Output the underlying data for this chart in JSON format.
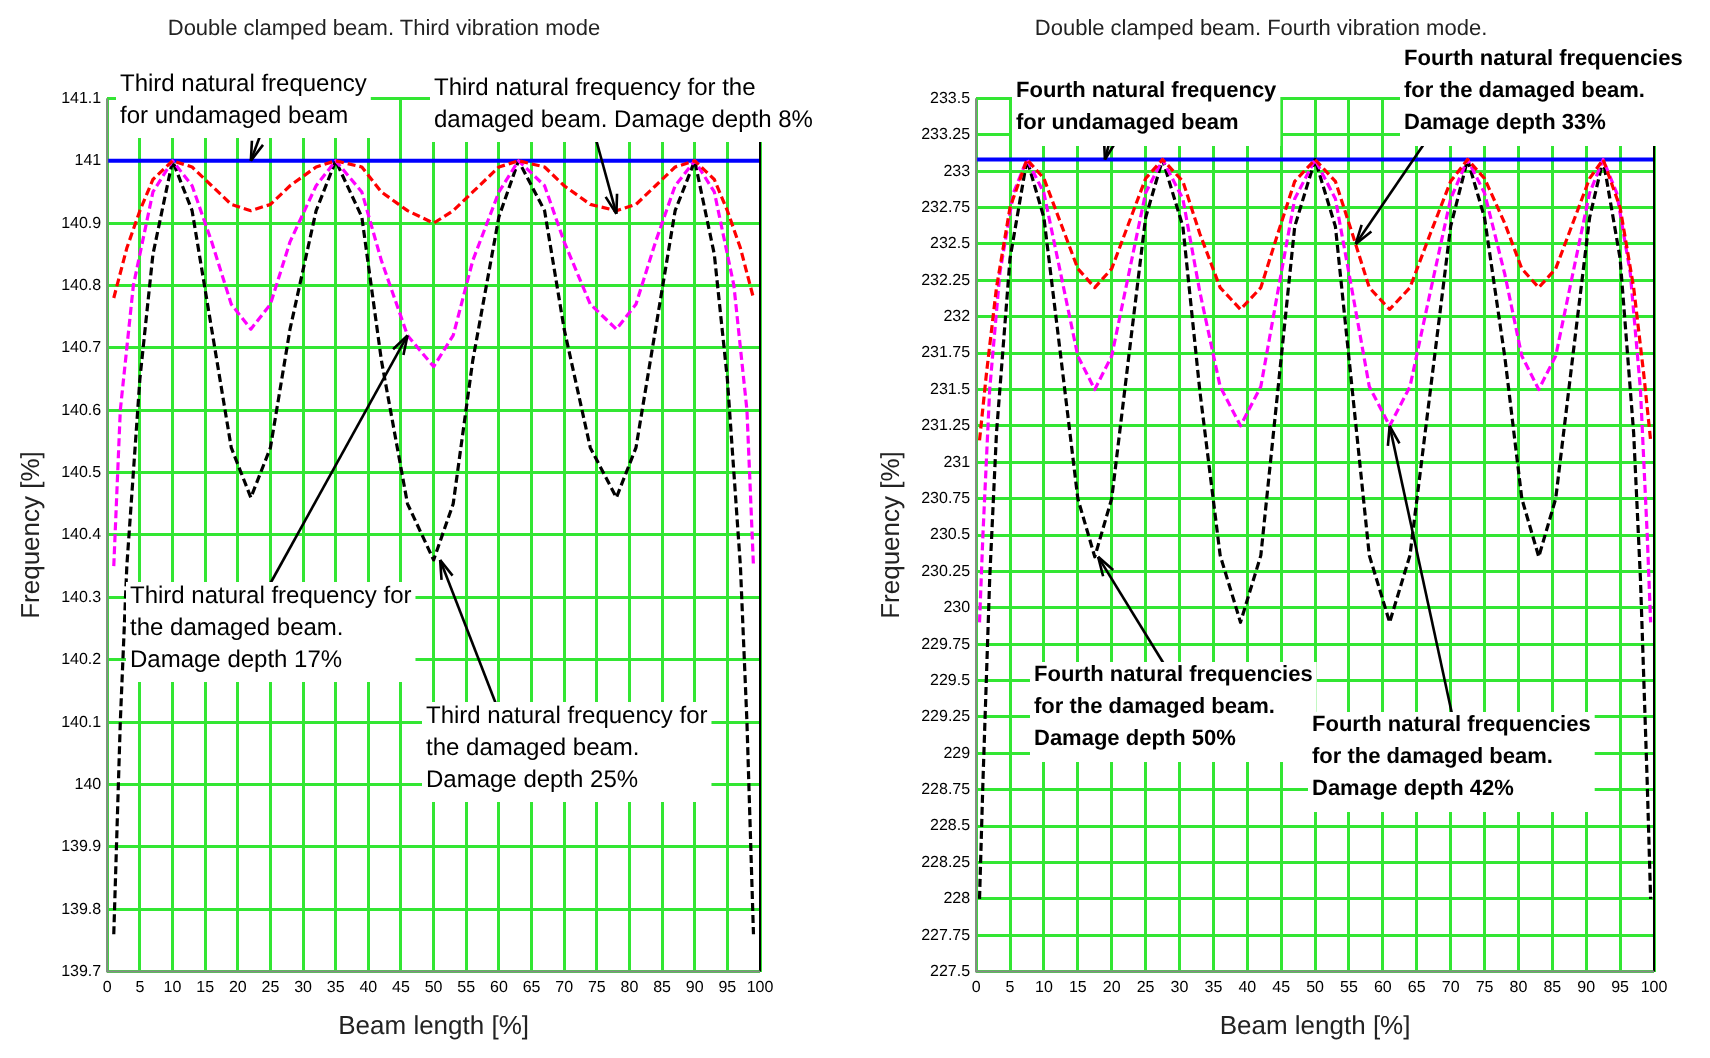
{
  "chart_data": [
    {
      "type": "line",
      "title": "Double clamped beam. Third vibration mode",
      "xlabel": "Beam length [%]",
      "ylabel": "Frequency [%]",
      "xlim": [
        0,
        100
      ],
      "xticks": [
        0,
        5,
        10,
        15,
        20,
        25,
        30,
        35,
        40,
        45,
        50,
        55,
        60,
        65,
        70,
        75,
        80,
        85,
        90,
        95,
        100
      ],
      "ylim": [
        139.7,
        141.1
      ],
      "yticks": [
        139.7,
        139.8,
        139.9,
        140,
        140.1,
        140.2,
        140.3,
        140.4,
        140.5,
        140.6,
        140.7,
        140.8,
        140.9,
        141,
        141.1
      ],
      "grid": true,
      "legend": false,
      "marker": "none",
      "line_style": "dashed",
      "series": [
        {
          "color": "#ff0000",
          "x": [
            1,
            3,
            5,
            7,
            10,
            13,
            16,
            19,
            22,
            25,
            28,
            32,
            35,
            39,
            42,
            46,
            50,
            53,
            56,
            60,
            63,
            67,
            70,
            74,
            78,
            81,
            84,
            87,
            90,
            93,
            95,
            97,
            99
          ],
          "values": [
            140.78,
            140.86,
            140.92,
            140.97,
            141,
            140.99,
            140.96,
            140.93,
            140.92,
            140.93,
            140.96,
            140.99,
            141,
            140.99,
            140.95,
            140.92,
            140.9,
            140.92,
            140.95,
            140.99,
            141,
            140.99,
            140.96,
            140.93,
            140.92,
            140.93,
            140.96,
            140.99,
            141,
            140.97,
            140.92,
            140.86,
            140.78
          ]
        },
        {
          "color": "#ff00ff",
          "x": [
            1,
            2,
            4,
            7,
            10,
            13,
            16,
            19,
            22,
            25,
            28,
            32,
            35,
            39,
            42,
            46,
            50,
            53,
            56,
            60,
            63,
            67,
            70,
            74,
            78,
            81,
            84,
            87,
            90,
            93,
            96,
            98,
            99
          ],
          "values": [
            140.35,
            140.6,
            140.8,
            140.95,
            141,
            140.96,
            140.87,
            140.77,
            140.73,
            140.77,
            140.87,
            140.96,
            141,
            140.95,
            140.84,
            140.72,
            140.67,
            140.72,
            140.84,
            140.95,
            141,
            140.96,
            140.87,
            140.77,
            140.73,
            140.77,
            140.87,
            140.96,
            141,
            140.95,
            140.8,
            140.6,
            140.35
          ]
        },
        {
          "color": "#000000",
          "x": [
            1,
            2,
            3,
            5,
            7,
            10,
            13,
            16,
            19,
            22,
            25,
            28,
            32,
            35,
            39,
            42,
            46,
            50,
            53,
            56,
            60,
            63,
            67,
            70,
            74,
            78,
            81,
            84,
            87,
            90,
            93,
            95,
            97,
            98,
            99
          ],
          "values": [
            139.76,
            140.1,
            140.35,
            140.65,
            140.85,
            141,
            140.92,
            140.73,
            140.54,
            140.46,
            140.54,
            140.73,
            140.92,
            141,
            140.91,
            140.68,
            140.45,
            140.36,
            140.45,
            140.68,
            140.91,
            141,
            140.92,
            140.73,
            140.54,
            140.46,
            140.54,
            140.73,
            140.92,
            141,
            140.85,
            140.65,
            140.35,
            140.1,
            139.76
          ]
        }
      ],
      "ref_lines": [
        {
          "axis": "y",
          "value": 141,
          "color": "#0000ff",
          "line_style": "solid"
        }
      ],
      "annotations": [
        {
          "text": "Third natural frequency\nfor undamaged beam",
          "x": 22,
          "y": 141
        },
        {
          "text": "Third natural frequency for the\ndamaged beam. Damage depth 8%",
          "x": 78,
          "y": 140.915
        },
        {
          "text": "Third natural frequency for\nthe damaged beam.\nDamage depth 17%",
          "x": 46,
          "y": 140.72
        },
        {
          "text": "Third natural frequency for\nthe damaged beam.\nDamage depth 25%",
          "x": 51,
          "y": 140.36
        }
      ]
    },
    {
      "type": "line",
      "title": "Double clamped beam. Fourth vibration mode.",
      "xlabel": "Beam length [%]",
      "ylabel": "Frequency [%]",
      "xlim": [
        0,
        100
      ],
      "xticks": [
        0,
        5,
        10,
        15,
        20,
        25,
        30,
        35,
        40,
        45,
        50,
        55,
        60,
        65,
        70,
        75,
        80,
        85,
        90,
        95,
        100
      ],
      "ylim": [
        227.5,
        233.5
      ],
      "yticks": [
        227.5,
        227.75,
        228,
        228.25,
        228.5,
        228.75,
        229,
        229.25,
        229.5,
        229.75,
        230,
        230.25,
        230.5,
        230.75,
        231,
        231.25,
        231.5,
        231.75,
        232,
        232.25,
        232.5,
        232.75,
        233,
        233.25,
        233.5
      ],
      "grid": true,
      "legend": false,
      "marker": "none",
      "line_style": "dashed",
      "series": [
        {
          "color": "#ff0000",
          "x": [
            0.5,
            1.5,
            3,
            5,
            7.5,
            10,
            12.5,
            15,
            17.5,
            20,
            22.5,
            25,
            27.5,
            30.5,
            33,
            36,
            39,
            42,
            44.5,
            47,
            50,
            53,
            55.5,
            58,
            61,
            64,
            67,
            70,
            72.5,
            75,
            78,
            80.5,
            83,
            85.5,
            88,
            90.5,
            92.5,
            95,
            97,
            98.5,
            99.5
          ],
          "values": [
            231.15,
            231.6,
            232.2,
            232.75,
            233.08,
            232.95,
            232.64,
            232.33,
            232.2,
            232.33,
            232.64,
            232.95,
            233.08,
            232.93,
            232.57,
            232.2,
            232.05,
            232.2,
            232.57,
            232.93,
            233.08,
            232.93,
            232.57,
            232.2,
            232.05,
            232.2,
            232.57,
            232.93,
            233.08,
            232.95,
            232.64,
            232.33,
            232.2,
            232.33,
            232.64,
            232.95,
            233.08,
            232.75,
            232.2,
            231.6,
            231.15
          ]
        },
        {
          "color": "#ff00ff",
          "x": [
            0.5,
            1,
            2,
            3.5,
            5.5,
            7.5,
            10,
            12.5,
            15,
            17.5,
            20,
            22.5,
            25,
            27.5,
            30.5,
            33,
            36,
            39,
            42,
            44.5,
            47,
            50,
            53,
            55.5,
            58,
            61,
            64,
            67,
            70,
            72.5,
            75,
            78,
            80.5,
            83,
            85.5,
            88,
            90.5,
            92.5,
            94.5,
            96.5,
            98,
            99,
            99.5
          ],
          "values": [
            229.9,
            230.5,
            231.5,
            232.3,
            232.85,
            233.08,
            232.85,
            232.29,
            231.73,
            231.5,
            231.73,
            232.29,
            232.85,
            233.08,
            232.81,
            232.17,
            231.52,
            231.25,
            231.52,
            232.17,
            232.81,
            233.08,
            232.81,
            232.17,
            231.52,
            231.25,
            231.52,
            232.17,
            232.81,
            233.08,
            232.85,
            232.29,
            231.73,
            231.5,
            231.73,
            232.29,
            232.85,
            233.08,
            232.85,
            232.3,
            231.5,
            230.5,
            229.9
          ]
        },
        {
          "color": "#000000",
          "x": [
            0.5,
            1,
            2,
            3,
            5,
            7.5,
            10,
            12.5,
            15,
            17.5,
            20,
            22.5,
            25,
            27.5,
            30.5,
            33,
            36,
            39,
            42,
            44.5,
            47,
            50,
            53,
            55.5,
            58,
            61,
            64,
            67,
            70,
            72.5,
            75,
            78,
            80.5,
            83,
            85.5,
            88,
            90.5,
            92.5,
            95,
            97,
            98,
            99,
            99.5
          ],
          "values": [
            228,
            228.8,
            230.2,
            231.2,
            232.4,
            233.08,
            232.68,
            231.72,
            230.75,
            230.35,
            230.75,
            231.72,
            232.68,
            233.08,
            232.62,
            231.49,
            230.36,
            229.9,
            230.36,
            231.49,
            232.62,
            233.08,
            232.62,
            231.49,
            230.36,
            229.9,
            230.36,
            231.49,
            232.62,
            233.08,
            232.68,
            231.72,
            230.75,
            230.35,
            230.75,
            231.72,
            232.68,
            233.08,
            232.4,
            231.2,
            230.2,
            228.8,
            228
          ]
        }
      ],
      "ref_lines": [
        {
          "axis": "y",
          "value": 233.08,
          "color": "#0000ff",
          "line_style": "solid"
        }
      ],
      "annotations": [
        {
          "text": "Fourth natural frequency\nfor undamaged beam",
          "x": 19,
          "y": 233.08
        },
        {
          "text": "Fourth natural frequencies\nfor the damaged beam.\nDamage depth 33%",
          "x": 56,
          "y": 232.5
        },
        {
          "text": "Fourth natural frequencies\nfor the damaged beam.\nDamage depth 50%",
          "x": 18,
          "y": 230.35
        },
        {
          "text": "Fourth natural frequencies\nfor the damaged beam.\nDamage depth 42%",
          "x": 61,
          "y": 231.25
        }
      ]
    }
  ]
}
